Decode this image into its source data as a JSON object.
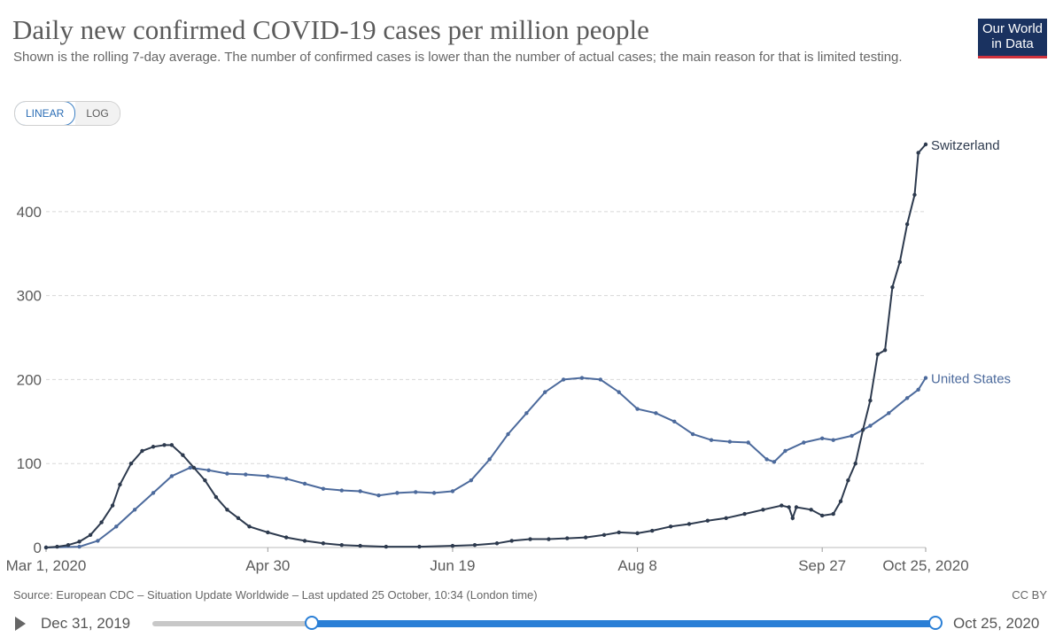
{
  "header": {
    "title": "Daily new confirmed COVID-19 cases per million people",
    "subtitle": "Shown is the rolling 7-day average. The number of confirmed cases is lower than the number of actual cases; the main reason for that is limited testing.",
    "logo_line1": "Our World",
    "logo_line2": "in Data"
  },
  "scale_toggle": {
    "linear": "LINEAR",
    "log": "LOG",
    "selected": "LINEAR"
  },
  "colors": {
    "switzerland": "#2d3a4e",
    "united_states": "#4c6a9c",
    "grid": "#d8d8d8",
    "axis_text": "#5b5b5b",
    "slider": "#2a7fd6"
  },
  "chart_data": {
    "type": "line",
    "title": "Daily new confirmed COVID-19 cases per million people",
    "ylabel": "",
    "ylim": [
      0,
      480
    ],
    "yticks": [
      0,
      100,
      200,
      300,
      400
    ],
    "ytick_labels": [
      "0",
      "100",
      "200",
      "300",
      "400"
    ],
    "x_start": "2020-03-01",
    "x_end": "2020-10-25",
    "xticks": [
      {
        "date": "2020-03-01",
        "label": "Mar 1, 2020"
      },
      {
        "date": "2020-04-30",
        "label": "Apr 30"
      },
      {
        "date": "2020-06-19",
        "label": "Jun 19"
      },
      {
        "date": "2020-08-08",
        "label": "Aug 8"
      },
      {
        "date": "2020-09-27",
        "label": "Sep 27"
      },
      {
        "date": "2020-10-25",
        "label": "Oct 25, 2020"
      }
    ],
    "grid": true,
    "series": [
      {
        "name": "Switzerland",
        "points": [
          [
            "2020-03-01",
            0
          ],
          [
            "2020-03-04",
            1
          ],
          [
            "2020-03-07",
            3
          ],
          [
            "2020-03-10",
            7
          ],
          [
            "2020-03-13",
            15
          ],
          [
            "2020-03-16",
            30
          ],
          [
            "2020-03-19",
            50
          ],
          [
            "2020-03-21",
            75
          ],
          [
            "2020-03-24",
            100
          ],
          [
            "2020-03-27",
            115
          ],
          [
            "2020-03-30",
            120
          ],
          [
            "2020-04-02",
            122
          ],
          [
            "2020-04-04",
            122
          ],
          [
            "2020-04-07",
            110
          ],
          [
            "2020-04-10",
            95
          ],
          [
            "2020-04-13",
            80
          ],
          [
            "2020-04-16",
            60
          ],
          [
            "2020-04-19",
            45
          ],
          [
            "2020-04-22",
            35
          ],
          [
            "2020-04-25",
            25
          ],
          [
            "2020-04-30",
            18
          ],
          [
            "2020-05-05",
            12
          ],
          [
            "2020-05-10",
            8
          ],
          [
            "2020-05-15",
            5
          ],
          [
            "2020-05-20",
            3
          ],
          [
            "2020-05-25",
            2
          ],
          [
            "2020-06-01",
            1
          ],
          [
            "2020-06-10",
            1
          ],
          [
            "2020-06-19",
            2
          ],
          [
            "2020-06-25",
            3
          ],
          [
            "2020-07-01",
            5
          ],
          [
            "2020-07-05",
            8
          ],
          [
            "2020-07-10",
            10
          ],
          [
            "2020-07-15",
            10
          ],
          [
            "2020-07-20",
            11
          ],
          [
            "2020-07-25",
            12
          ],
          [
            "2020-07-30",
            15
          ],
          [
            "2020-08-03",
            18
          ],
          [
            "2020-08-08",
            17
          ],
          [
            "2020-08-12",
            20
          ],
          [
            "2020-08-17",
            25
          ],
          [
            "2020-08-22",
            28
          ],
          [
            "2020-08-27",
            32
          ],
          [
            "2020-09-01",
            35
          ],
          [
            "2020-09-06",
            40
          ],
          [
            "2020-09-11",
            45
          ],
          [
            "2020-09-16",
            50
          ],
          [
            "2020-09-18",
            48
          ],
          [
            "2020-09-19",
            35
          ],
          [
            "2020-09-20",
            48
          ],
          [
            "2020-09-24",
            45
          ],
          [
            "2020-09-27",
            38
          ],
          [
            "2020-09-30",
            40
          ],
          [
            "2020-10-02",
            55
          ],
          [
            "2020-10-04",
            80
          ],
          [
            "2020-10-06",
            100
          ],
          [
            "2020-10-08",
            140
          ],
          [
            "2020-10-10",
            175
          ],
          [
            "2020-10-12",
            230
          ],
          [
            "2020-10-14",
            235
          ],
          [
            "2020-10-16",
            310
          ],
          [
            "2020-10-18",
            340
          ],
          [
            "2020-10-20",
            385
          ],
          [
            "2020-10-22",
            420
          ],
          [
            "2020-10-23",
            470
          ],
          [
            "2020-10-25",
            480
          ]
        ]
      },
      {
        "name": "United States",
        "points": [
          [
            "2020-03-01",
            0
          ],
          [
            "2020-03-10",
            1
          ],
          [
            "2020-03-15",
            8
          ],
          [
            "2020-03-20",
            25
          ],
          [
            "2020-03-25",
            45
          ],
          [
            "2020-03-30",
            65
          ],
          [
            "2020-04-04",
            85
          ],
          [
            "2020-04-09",
            95
          ],
          [
            "2020-04-14",
            92
          ],
          [
            "2020-04-19",
            88
          ],
          [
            "2020-04-24",
            87
          ],
          [
            "2020-04-30",
            85
          ],
          [
            "2020-05-05",
            82
          ],
          [
            "2020-05-10",
            76
          ],
          [
            "2020-05-15",
            70
          ],
          [
            "2020-05-20",
            68
          ],
          [
            "2020-05-25",
            67
          ],
          [
            "2020-05-30",
            62
          ],
          [
            "2020-06-04",
            65
          ],
          [
            "2020-06-09",
            66
          ],
          [
            "2020-06-14",
            65
          ],
          [
            "2020-06-19",
            67
          ],
          [
            "2020-06-24",
            80
          ],
          [
            "2020-06-29",
            105
          ],
          [
            "2020-07-04",
            135
          ],
          [
            "2020-07-09",
            160
          ],
          [
            "2020-07-14",
            185
          ],
          [
            "2020-07-19",
            200
          ],
          [
            "2020-07-24",
            202
          ],
          [
            "2020-07-29",
            200
          ],
          [
            "2020-08-03",
            185
          ],
          [
            "2020-08-08",
            165
          ],
          [
            "2020-08-13",
            160
          ],
          [
            "2020-08-18",
            150
          ],
          [
            "2020-08-23",
            135
          ],
          [
            "2020-08-28",
            128
          ],
          [
            "2020-09-02",
            126
          ],
          [
            "2020-09-07",
            125
          ],
          [
            "2020-09-12",
            105
          ],
          [
            "2020-09-14",
            102
          ],
          [
            "2020-09-17",
            115
          ],
          [
            "2020-09-22",
            125
          ],
          [
            "2020-09-27",
            130
          ],
          [
            "2020-09-30",
            128
          ],
          [
            "2020-10-05",
            133
          ],
          [
            "2020-10-10",
            145
          ],
          [
            "2020-10-15",
            160
          ],
          [
            "2020-10-20",
            178
          ],
          [
            "2020-10-23",
            188
          ],
          [
            "2020-10-25",
            202
          ]
        ]
      }
    ]
  },
  "footer": {
    "source": "Source: European CDC – Situation Update Worldwide – Last updated 25 October, 10:34 (London time)",
    "license": "CC BY"
  },
  "timeline": {
    "start_label": "Dec 31, 2019",
    "end_label": "Oct 25, 2020",
    "range_start": "2020-03-01",
    "range_end": "2020-10-25"
  }
}
